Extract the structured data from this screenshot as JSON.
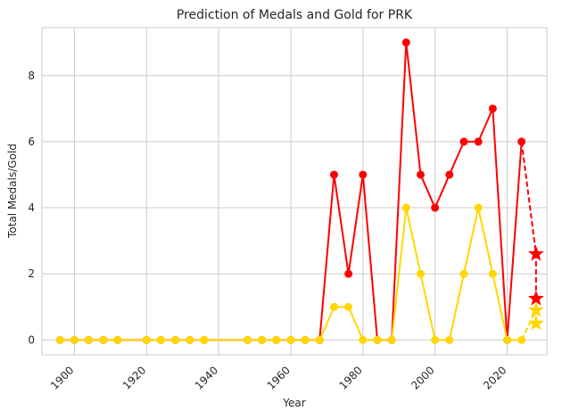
{
  "chart_data": {
    "type": "line",
    "title": "Prediction of Medals and Gold for PRK",
    "xlabel": "Year",
    "ylabel": "Total Medals/Gold",
    "xlim": [
      1891,
      2031
    ],
    "ylim": [
      -0.45,
      9.45
    ],
    "xticks": [
      1900,
      1920,
      1940,
      1960,
      1980,
      2000,
      2020
    ],
    "yticks": [
      0,
      2,
      4,
      6,
      8
    ],
    "grid": true,
    "series": [
      {
        "color": "#ff0000",
        "style": "solid-circle",
        "x": [
          1896,
          1900,
          1904,
          1908,
          1912,
          1920,
          1924,
          1928,
          1932,
          1936,
          1948,
          1952,
          1956,
          1960,
          1964,
          1968,
          1972,
          1976,
          1980,
          1984,
          1988,
          1992,
          1996,
          2000,
          2004,
          2008,
          2012,
          2016,
          2020,
          2024
        ],
        "y": [
          0,
          0,
          0,
          0,
          0,
          0,
          0,
          0,
          0,
          0,
          0,
          0,
          0,
          0,
          0,
          0,
          5,
          2,
          5,
          0,
          0,
          9,
          5,
          4,
          5,
          6,
          6,
          7,
          0,
          6
        ]
      },
      {
        "color": "#ffd700",
        "style": "solid-circle",
        "x": [
          1896,
          1900,
          1904,
          1908,
          1912,
          1920,
          1924,
          1928,
          1932,
          1936,
          1948,
          1952,
          1956,
          1960,
          1964,
          1968,
          1972,
          1976,
          1980,
          1984,
          1988,
          1992,
          1996,
          2000,
          2004,
          2008,
          2012,
          2016,
          2020,
          2024
        ],
        "y": [
          0,
          0,
          0,
          0,
          0,
          0,
          0,
          0,
          0,
          0,
          0,
          0,
          0,
          0,
          0,
          0,
          1,
          1,
          0,
          0,
          0,
          4,
          2,
          0,
          0,
          2,
          4,
          2,
          0,
          0
        ]
      },
      {
        "color": "#ff0000",
        "style": "dashed-star",
        "x": [
          2024,
          2028,
          2028
        ],
        "y": [
          6,
          2.6,
          1.25
        ]
      },
      {
        "color": "#ffd700",
        "style": "dashed-star",
        "x": [
          2024,
          2028,
          2028
        ],
        "y": [
          0,
          0.9,
          0.5
        ]
      }
    ]
  }
}
